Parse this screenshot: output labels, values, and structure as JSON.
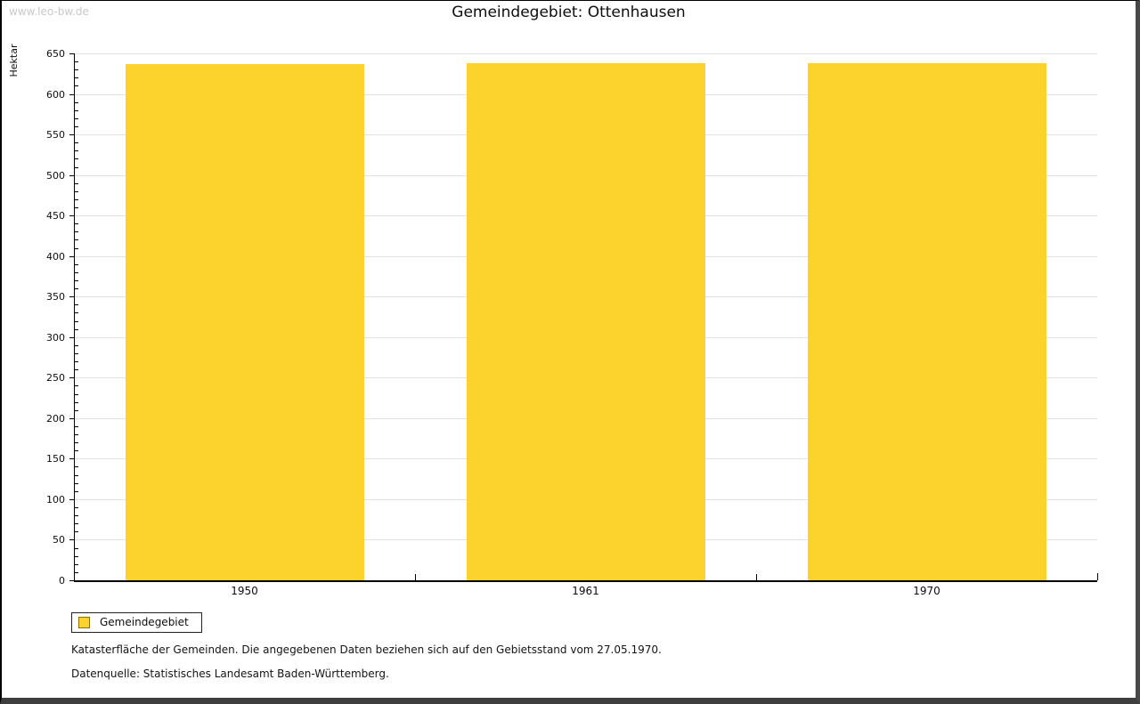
{
  "watermark": "www.leo-bw.de",
  "title": "Gemeindegebiet: Ottenhausen",
  "legend": {
    "label": "Gemeindegebiet"
  },
  "notes": {
    "line1": "Katasterfläche der Gemeinden. Die angegebenen Daten beziehen sich auf den Gebietsstand vom 27.05.1970.",
    "line2": "Datenquelle: Statistisches Landesamt Baden-Württemberg."
  },
  "colors": {
    "bar": "#fcd32c",
    "bar_swatch_border": "#8a7000",
    "grid": "#e2e2e2",
    "axis": "#000000",
    "watermark_text": "#c9c9c9"
  },
  "chart_data": {
    "type": "bar",
    "title": "Gemeindegebiet: Ottenhausen",
    "categories": [
      "1950",
      "1961",
      "1970"
    ],
    "series": [
      {
        "name": "Gemeindegebiet",
        "values": [
          637,
          638,
          638
        ]
      }
    ],
    "xlabel": "",
    "ylabel": "Hektar",
    "ylim": [
      0,
      650
    ],
    "y_major_step": 50,
    "y_minor_step": 10,
    "grid": true,
    "legend_position": "bottom-left"
  }
}
